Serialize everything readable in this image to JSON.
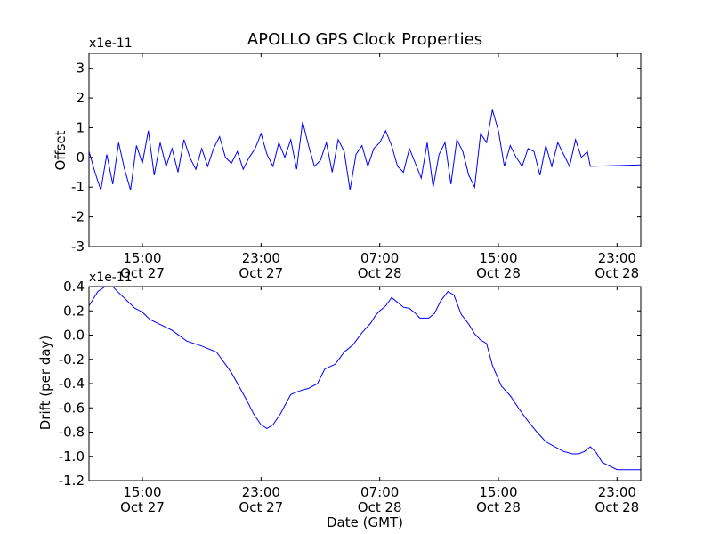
{
  "chart_data": [
    {
      "type": "line",
      "title": "APOLLO GPS Clock Properties",
      "ylabel": "Offset",
      "y_multiplier_label": "x1e-11",
      "ylim": [
        -3,
        3.5
      ],
      "yticks": [
        -3,
        -2,
        -1,
        0,
        1,
        2,
        3
      ],
      "ytick_labels": [
        "-3",
        "-2",
        "-1",
        "0",
        "1",
        "2",
        "3"
      ],
      "xlim_hours": [
        11.4,
        48.6
      ],
      "xticks_hours": [
        15,
        23,
        31,
        39,
        47
      ],
      "xtick_labels": [
        {
          "time": "15:00",
          "date": "Oct 27"
        },
        {
          "time": "23:00",
          "date": "Oct 27"
        },
        {
          "time": "07:00",
          "date": "Oct 28"
        },
        {
          "time": "15:00",
          "date": "Oct 28"
        },
        {
          "time": "23:00",
          "date": "Oct 28"
        }
      ],
      "grid": false,
      "line_color": "#0000ff",
      "series": [
        {
          "x_hours": [
            11.4,
            11.8,
            12.2,
            12.6,
            13.0,
            13.4,
            13.8,
            14.2,
            14.6,
            15.0,
            15.4,
            15.8,
            16.2,
            16.6,
            17.0,
            17.4,
            17.8,
            18.2,
            18.6,
            19.0,
            19.4,
            19.8,
            20.2,
            20.6,
            21.0,
            21.4,
            21.8,
            22.2,
            22.6,
            23.0,
            23.4,
            23.8,
            24.2,
            24.6,
            25.0,
            25.4,
            25.8,
            26.2,
            26.6,
            27.0,
            27.4,
            27.8,
            28.2,
            28.6,
            29.0,
            29.4,
            29.8,
            30.2,
            30.6,
            31.0,
            31.4,
            31.8,
            32.2,
            32.6,
            33.0,
            33.4,
            33.8,
            34.2,
            34.6,
            35.0,
            35.4,
            35.8,
            36.2,
            36.6,
            37.0,
            37.4,
            37.8,
            38.2,
            38.6,
            39.0,
            39.4,
            39.8,
            40.2,
            40.6,
            41.0,
            41.4,
            41.8,
            42.2,
            42.6,
            43.0,
            43.4,
            43.8,
            44.2,
            44.6,
            45.0,
            45.2,
            48.6
          ],
          "y": [
            0.2,
            -0.5,
            -1.1,
            0.1,
            -0.9,
            0.5,
            -0.4,
            -1.1,
            0.4,
            -0.2,
            0.9,
            -0.6,
            0.5,
            -0.3,
            0.3,
            -0.5,
            0.6,
            0.0,
            -0.4,
            0.3,
            -0.3,
            0.3,
            0.7,
            0.0,
            -0.2,
            0.2,
            -0.4,
            0.0,
            0.3,
            0.8,
            0.1,
            -0.3,
            0.5,
            0.0,
            0.6,
            -0.4,
            1.2,
            0.4,
            -0.3,
            -0.1,
            0.5,
            -0.5,
            0.6,
            0.2,
            -1.1,
            0.1,
            0.4,
            -0.3,
            0.3,
            0.5,
            0.9,
            0.4,
            -0.3,
            -0.5,
            0.3,
            -0.2,
            -0.7,
            0.5,
            -1.0,
            0.1,
            0.5,
            -0.9,
            0.6,
            0.2,
            -0.6,
            -1.0,
            0.8,
            0.5,
            1.6,
            0.9,
            -0.3,
            0.4,
            0.0,
            -0.3,
            0.3,
            0.2,
            -0.6,
            0.4,
            -0.3,
            0.5,
            0.1,
            -0.3,
            0.6,
            0.0,
            0.2,
            -0.3,
            -0.25
          ]
        }
      ]
    },
    {
      "type": "line",
      "ylabel": "Drift (per day)",
      "xlabel": "Date (GMT)",
      "y_multiplier_label": "x1e-11",
      "ylim": [
        -1.2,
        0.4
      ],
      "yticks": [
        -1.2,
        -1.0,
        -0.8,
        -0.6,
        -0.4,
        -0.2,
        0.0,
        0.2,
        0.4
      ],
      "ytick_labels": [
        "-1.2",
        "-1.0",
        "-0.8",
        "-0.6",
        "-0.4",
        "-0.2",
        "0.0",
        "0.2",
        "0.4"
      ],
      "xlim_hours": [
        11.4,
        48.6
      ],
      "xticks_hours": [
        15,
        23,
        31,
        39,
        47
      ],
      "xtick_labels": [
        {
          "time": "15:00",
          "date": "Oct 27"
        },
        {
          "time": "23:00",
          "date": "Oct 27"
        },
        {
          "time": "07:00",
          "date": "Oct 28"
        },
        {
          "time": "15:00",
          "date": "Oct 28"
        },
        {
          "time": "23:00",
          "date": "Oct 28"
        }
      ],
      "grid": false,
      "line_color": "#0000ff",
      "series": [
        {
          "x_hours": [
            11.4,
            12.0,
            12.5,
            13.0,
            13.4,
            14.0,
            14.5,
            15.0,
            15.5,
            16.0,
            17.0,
            18.0,
            19.0,
            20.0,
            21.0,
            22.0,
            22.5,
            23.0,
            23.4,
            23.8,
            24.3,
            25.0,
            25.6,
            26.2,
            26.8,
            27.3,
            28.0,
            28.6,
            29.2,
            29.8,
            30.4,
            30.7,
            31.0,
            31.4,
            31.8,
            32.2,
            32.6,
            33.0,
            33.4,
            33.7,
            34.0,
            34.3,
            34.7,
            35.1,
            35.6,
            36.0,
            36.5,
            37.0,
            37.4,
            37.8,
            38.2,
            38.6,
            39.2,
            39.8,
            40.4,
            41.0,
            41.6,
            42.2,
            42.8,
            43.4,
            44.0,
            44.4,
            44.8,
            45.2,
            45.6,
            46.0,
            47.0,
            48.6
          ],
          "y": [
            0.24,
            0.36,
            0.4,
            0.4,
            0.35,
            0.28,
            0.22,
            0.19,
            0.13,
            0.1,
            0.04,
            -0.05,
            -0.09,
            -0.14,
            -0.31,
            -0.53,
            -0.65,
            -0.74,
            -0.77,
            -0.74,
            -0.65,
            -0.49,
            -0.46,
            -0.44,
            -0.4,
            -0.28,
            -0.24,
            -0.14,
            -0.08,
            0.02,
            0.1,
            0.16,
            0.2,
            0.24,
            0.31,
            0.27,
            0.23,
            0.22,
            0.18,
            0.14,
            0.14,
            0.14,
            0.18,
            0.28,
            0.36,
            0.33,
            0.17,
            0.09,
            0.01,
            -0.04,
            -0.07,
            -0.25,
            -0.42,
            -0.5,
            -0.61,
            -0.71,
            -0.8,
            -0.88,
            -0.92,
            -0.96,
            -0.98,
            -0.98,
            -0.96,
            -0.92,
            -0.97,
            -1.05,
            -1.11,
            -1.11
          ]
        }
      ]
    }
  ]
}
